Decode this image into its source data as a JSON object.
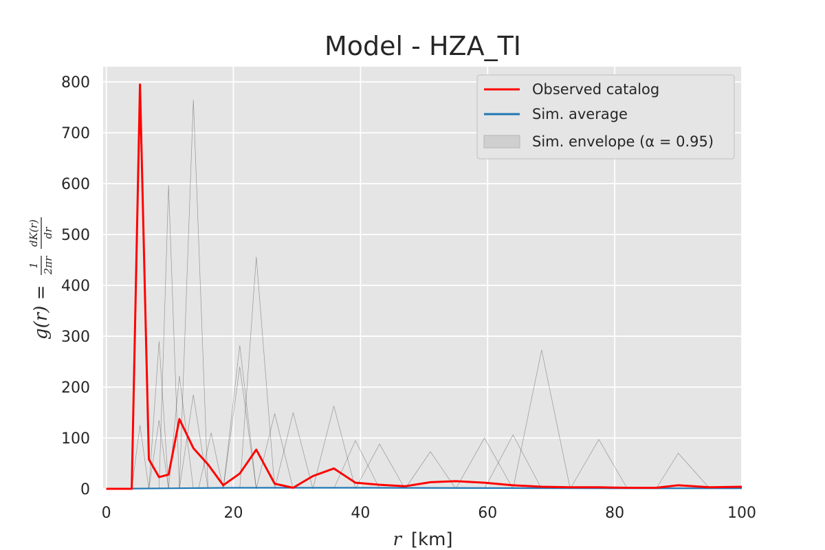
{
  "chart_data": {
    "type": "line",
    "title": "Model - HZA_TI",
    "xlabel": {
      "var": "r",
      "unit": "[km]"
    },
    "ylabel": {
      "lhs": "g(r) = ",
      "num1": "1",
      "den1": "2πr",
      "num2": "dK(r)",
      "den2": "dr"
    },
    "xlim": [
      -0.5,
      100
    ],
    "ylim": [
      0,
      830
    ],
    "xticks": [
      0,
      20,
      40,
      60,
      80,
      100
    ],
    "yticks": [
      0,
      100,
      200,
      300,
      400,
      500,
      600,
      700,
      800
    ],
    "grid": true,
    "legend_placement": "upper-right",
    "colors": {
      "observed": "#ff0000",
      "sim_average": "#1f77b4",
      "sim_lines": "#000000",
      "envelope": "#bfbfbf",
      "background": "#e5e5e5"
    },
    "series": [
      {
        "name": "Observed catalog",
        "color": "#ff0000",
        "x": [
          0,
          1.5,
          3.0,
          4.0,
          5.3,
          6.7,
          8.3,
          9.8,
          11.5,
          13.7,
          16.0,
          18.4,
          21.0,
          23.6,
          26.5,
          29.4,
          32.5,
          35.8,
          39.2,
          43.0,
          47.0,
          51.0,
          55.0,
          59.5,
          64.0,
          68.5,
          73.0,
          77.5,
          82.0,
          86.5,
          90.0,
          95.0,
          100.0
        ],
        "y": [
          0,
          0,
          0,
          0,
          795,
          58,
          23,
          28,
          137,
          80,
          48,
          7,
          30,
          77,
          10,
          2,
          25,
          40,
          12,
          8,
          5,
          13,
          15,
          12,
          7,
          4,
          3,
          3,
          2,
          2,
          7,
          3,
          4
        ]
      },
      {
        "name": "Sim. average",
        "color": "#1f77b4",
        "x": [
          0,
          20,
          40,
          60,
          80,
          100
        ],
        "y": [
          0,
          2,
          2,
          1.5,
          1,
          1
        ]
      }
    ],
    "envelope": {
      "name": "Sim. envelope (α = 0.95)",
      "lower": [
        0,
        0
      ],
      "upper": [
        0,
        0
      ],
      "x": [
        0,
        100
      ]
    },
    "simulation_peaks": [
      {
        "x": [
          11.5,
          13.7,
          16.0
        ],
        "y": [
          0,
          765,
          0
        ]
      },
      {
        "x": [
          8.3,
          9.8,
          11.5
        ],
        "y": [
          0,
          597,
          0
        ]
      },
      {
        "x": [
          21.0,
          23.6,
          26.5
        ],
        "y": [
          0,
          456,
          0
        ]
      },
      {
        "x": [
          6.7,
          8.3,
          9.8
        ],
        "y": [
          0,
          290,
          0
        ]
      },
      {
        "x": [
          18.4,
          21.0,
          23.6
        ],
        "y": [
          0,
          282,
          0
        ]
      },
      {
        "x": [
          64.0,
          68.5,
          73.0
        ],
        "y": [
          0,
          273,
          0
        ]
      },
      {
        "x": [
          9.8,
          11.5,
          13.7
        ],
        "y": [
          0,
          222,
          0
        ]
      },
      {
        "x": [
          18.4,
          21.0,
          23.6
        ],
        "y": [
          0,
          240,
          0
        ]
      },
      {
        "x": [
          11.5,
          13.7,
          16.0
        ],
        "y": [
          0,
          185,
          0
        ]
      },
      {
        "x": [
          32.5,
          35.8,
          39.2
        ],
        "y": [
          0,
          163,
          0
        ]
      },
      {
        "x": [
          26.5,
          29.4,
          32.5
        ],
        "y": [
          0,
          150,
          0
        ]
      },
      {
        "x": [
          23.6,
          26.5,
          29.4
        ],
        "y": [
          0,
          148,
          0
        ]
      },
      {
        "x": [
          6.7,
          8.3,
          9.8
        ],
        "y": [
          0,
          135,
          0
        ]
      },
      {
        "x": [
          55.0,
          59.5,
          64.0
        ],
        "y": [
          0,
          100,
          0
        ]
      },
      {
        "x": [
          59.5,
          64.0,
          68.5
        ],
        "y": [
          0,
          106,
          0
        ]
      },
      {
        "x": [
          73.0,
          77.5,
          82.0
        ],
        "y": [
          0,
          97,
          0
        ]
      },
      {
        "x": [
          39.2,
          43.0,
          47.0
        ],
        "y": [
          0,
          88,
          0
        ]
      },
      {
        "x": [
          14.5,
          16.5,
          18.4
        ],
        "y": [
          0,
          110,
          0
        ]
      },
      {
        "x": [
          47.0,
          51.0,
          55.0
        ],
        "y": [
          0,
          73,
          0
        ]
      },
      {
        "x": [
          86.5,
          90.0,
          95.0
        ],
        "y": [
          0,
          70,
          0
        ]
      },
      {
        "x": [
          35.8,
          39.2,
          43.0
        ],
        "y": [
          0,
          95,
          0
        ]
      },
      {
        "x": [
          4.0,
          5.3,
          6.7
        ],
        "y": [
          0,
          125,
          0
        ]
      }
    ]
  }
}
